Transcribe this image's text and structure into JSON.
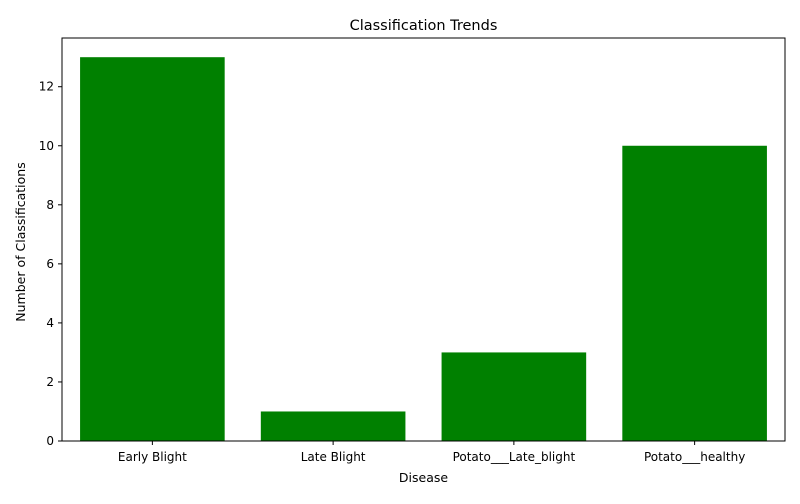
{
  "chart_data": {
    "type": "bar",
    "title": "Classification Trends",
    "xlabel": "Disease",
    "ylabel": "Number of Classifications",
    "categories": [
      "Early Blight",
      "Late Blight",
      "Potato___Late_blight",
      "Potato___healthy"
    ],
    "values": [
      13,
      1,
      3,
      10
    ],
    "ylim": [
      0,
      13.65
    ],
    "yticks": [
      0,
      2,
      4,
      6,
      8,
      10,
      12
    ],
    "bar_color": "#008000",
    "grid": false,
    "legend": "none"
  }
}
